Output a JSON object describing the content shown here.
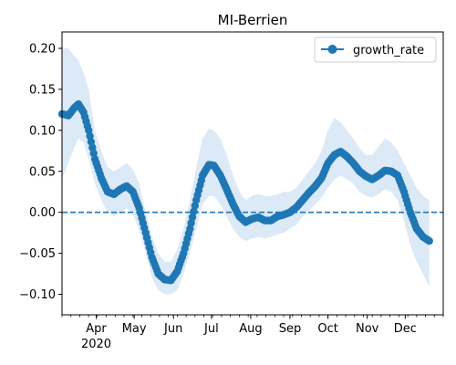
{
  "chart_data": {
    "type": "line",
    "title": "MI-Berrien",
    "xlabel": "",
    "ylabel": "",
    "xlim": [
      "2020-03-05",
      "2020-12-31"
    ],
    "ylim": [
      -0.125,
      0.22
    ],
    "grid": false,
    "legend_position": "upper-right",
    "y_ticks": [
      -0.1,
      -0.05,
      0.0,
      0.05,
      0.1,
      0.15,
      0.2
    ],
    "y_tick_labels": [
      "−0.10",
      "−0.05",
      "0.00",
      "0.05",
      "0.10",
      "0.15",
      "0.20"
    ],
    "x_ticks": [
      {
        "date": "2020-04-01",
        "label": "Apr",
        "sublabel": "2020"
      },
      {
        "date": "2020-05-01",
        "label": "May"
      },
      {
        "date": "2020-06-01",
        "label": "Jun"
      },
      {
        "date": "2020-07-01",
        "label": "Jul"
      },
      {
        "date": "2020-08-01",
        "label": "Aug"
      },
      {
        "date": "2020-09-01",
        "label": "Sep"
      },
      {
        "date": "2020-10-01",
        "label": "Oct"
      },
      {
        "date": "2020-11-01",
        "label": "Nov"
      },
      {
        "date": "2020-12-01",
        "label": "Dec"
      }
    ],
    "reference_line": {
      "y": 0.0,
      "style": "dashed"
    },
    "series": [
      {
        "name": "growth_rate",
        "color": "#1f77b4",
        "band_color": "#dce9f6",
        "points": [
          {
            "x": "2020-03-05",
            "y": 0.12,
            "lo": 0.04,
            "hi": 0.2
          },
          {
            "x": "2020-03-10",
            "y": 0.118,
            "lo": 0.06,
            "hi": 0.2
          },
          {
            "x": "2020-03-15",
            "y": 0.128,
            "lo": 0.08,
            "hi": 0.19
          },
          {
            "x": "2020-03-18",
            "y": 0.132,
            "lo": 0.09,
            "hi": 0.185
          },
          {
            "x": "2020-03-22",
            "y": 0.122,
            "lo": 0.085,
            "hi": 0.17
          },
          {
            "x": "2020-03-26",
            "y": 0.1,
            "lo": 0.065,
            "hi": 0.15
          },
          {
            "x": "2020-03-31",
            "y": 0.065,
            "lo": 0.035,
            "hi": 0.1
          },
          {
            "x": "2020-04-05",
            "y": 0.042,
            "lo": 0.015,
            "hi": 0.075
          },
          {
            "x": "2020-04-10",
            "y": 0.025,
            "lo": 0.0,
            "hi": 0.055
          },
          {
            "x": "2020-04-15",
            "y": 0.022,
            "lo": -0.005,
            "hi": 0.05
          },
          {
            "x": "2020-04-20",
            "y": 0.028,
            "lo": 0.0,
            "hi": 0.055
          },
          {
            "x": "2020-04-25",
            "y": 0.032,
            "lo": 0.005,
            "hi": 0.06
          },
          {
            "x": "2020-04-30",
            "y": 0.025,
            "lo": -0.002,
            "hi": 0.052
          },
          {
            "x": "2020-05-05",
            "y": 0.005,
            "lo": -0.022,
            "hi": 0.035
          },
          {
            "x": "2020-05-10",
            "y": -0.025,
            "lo": -0.05,
            "hi": 0.0
          },
          {
            "x": "2020-05-15",
            "y": -0.055,
            "lo": -0.08,
            "hi": -0.03
          },
          {
            "x": "2020-05-20",
            "y": -0.075,
            "lo": -0.095,
            "hi": -0.05
          },
          {
            "x": "2020-05-25",
            "y": -0.082,
            "lo": -0.1,
            "hi": -0.06
          },
          {
            "x": "2020-05-30",
            "y": -0.083,
            "lo": -0.1,
            "hi": -0.06
          },
          {
            "x": "2020-06-04",
            "y": -0.072,
            "lo": -0.095,
            "hi": -0.045
          },
          {
            "x": "2020-06-09",
            "y": -0.05,
            "lo": -0.075,
            "hi": -0.02
          },
          {
            "x": "2020-06-14",
            "y": -0.02,
            "lo": -0.05,
            "hi": 0.015
          },
          {
            "x": "2020-06-19",
            "y": 0.015,
            "lo": -0.02,
            "hi": 0.055
          },
          {
            "x": "2020-06-24",
            "y": 0.045,
            "lo": 0.01,
            "hi": 0.09
          },
          {
            "x": "2020-06-29",
            "y": 0.058,
            "lo": 0.02,
            "hi": 0.102
          },
          {
            "x": "2020-07-03",
            "y": 0.057,
            "lo": 0.02,
            "hi": 0.1
          },
          {
            "x": "2020-07-08",
            "y": 0.045,
            "lo": 0.01,
            "hi": 0.09
          },
          {
            "x": "2020-07-13",
            "y": 0.028,
            "lo": -0.005,
            "hi": 0.07
          },
          {
            "x": "2020-07-18",
            "y": 0.01,
            "lo": -0.02,
            "hi": 0.045
          },
          {
            "x": "2020-07-23",
            "y": -0.005,
            "lo": -0.03,
            "hi": 0.025
          },
          {
            "x": "2020-07-28",
            "y": -0.012,
            "lo": -0.035,
            "hi": 0.015
          },
          {
            "x": "2020-08-02",
            "y": -0.008,
            "lo": -0.032,
            "hi": 0.02
          },
          {
            "x": "2020-08-07",
            "y": -0.006,
            "lo": -0.03,
            "hi": 0.022
          },
          {
            "x": "2020-08-12",
            "y": -0.01,
            "lo": -0.032,
            "hi": 0.02
          },
          {
            "x": "2020-08-17",
            "y": -0.01,
            "lo": -0.03,
            "hi": 0.02
          },
          {
            "x": "2020-08-22",
            "y": -0.005,
            "lo": -0.027,
            "hi": 0.022
          },
          {
            "x": "2020-08-27",
            "y": -0.003,
            "lo": -0.025,
            "hi": 0.025
          },
          {
            "x": "2020-09-01",
            "y": 0.0,
            "lo": -0.02,
            "hi": 0.025
          },
          {
            "x": "2020-09-06",
            "y": 0.006,
            "lo": -0.015,
            "hi": 0.03
          },
          {
            "x": "2020-09-11",
            "y": 0.015,
            "lo": -0.005,
            "hi": 0.04
          },
          {
            "x": "2020-09-16",
            "y": 0.024,
            "lo": 0.002,
            "hi": 0.05
          },
          {
            "x": "2020-09-21",
            "y": 0.032,
            "lo": 0.01,
            "hi": 0.06
          },
          {
            "x": "2020-09-26",
            "y": 0.042,
            "lo": 0.018,
            "hi": 0.075
          },
          {
            "x": "2020-10-01",
            "y": 0.06,
            "lo": 0.03,
            "hi": 0.1
          },
          {
            "x": "2020-10-06",
            "y": 0.07,
            "lo": 0.04,
            "hi": 0.115
          },
          {
            "x": "2020-10-11",
            "y": 0.074,
            "lo": 0.045,
            "hi": 0.11
          },
          {
            "x": "2020-10-16",
            "y": 0.068,
            "lo": 0.04,
            "hi": 0.1
          },
          {
            "x": "2020-10-21",
            "y": 0.06,
            "lo": 0.035,
            "hi": 0.09
          },
          {
            "x": "2020-10-26",
            "y": 0.05,
            "lo": 0.025,
            "hi": 0.078
          },
          {
            "x": "2020-10-31",
            "y": 0.044,
            "lo": 0.02,
            "hi": 0.07
          },
          {
            "x": "2020-11-05",
            "y": 0.04,
            "lo": 0.018,
            "hi": 0.07
          },
          {
            "x": "2020-11-10",
            "y": 0.045,
            "lo": 0.022,
            "hi": 0.08
          },
          {
            "x": "2020-11-15",
            "y": 0.051,
            "lo": 0.028,
            "hi": 0.09
          },
          {
            "x": "2020-11-20",
            "y": 0.05,
            "lo": 0.025,
            "hi": 0.085
          },
          {
            "x": "2020-11-25",
            "y": 0.045,
            "lo": 0.015,
            "hi": 0.075
          },
          {
            "x": "2020-11-30",
            "y": 0.025,
            "lo": -0.01,
            "hi": 0.06
          },
          {
            "x": "2020-12-05",
            "y": 0.0,
            "lo": -0.04,
            "hi": 0.045
          },
          {
            "x": "2020-12-10",
            "y": -0.02,
            "lo": -0.06,
            "hi": 0.03
          },
          {
            "x": "2020-12-15",
            "y": -0.03,
            "lo": -0.075,
            "hi": 0.02
          },
          {
            "x": "2020-12-20",
            "y": -0.035,
            "lo": -0.09,
            "hi": 0.015
          }
        ]
      }
    ]
  }
}
